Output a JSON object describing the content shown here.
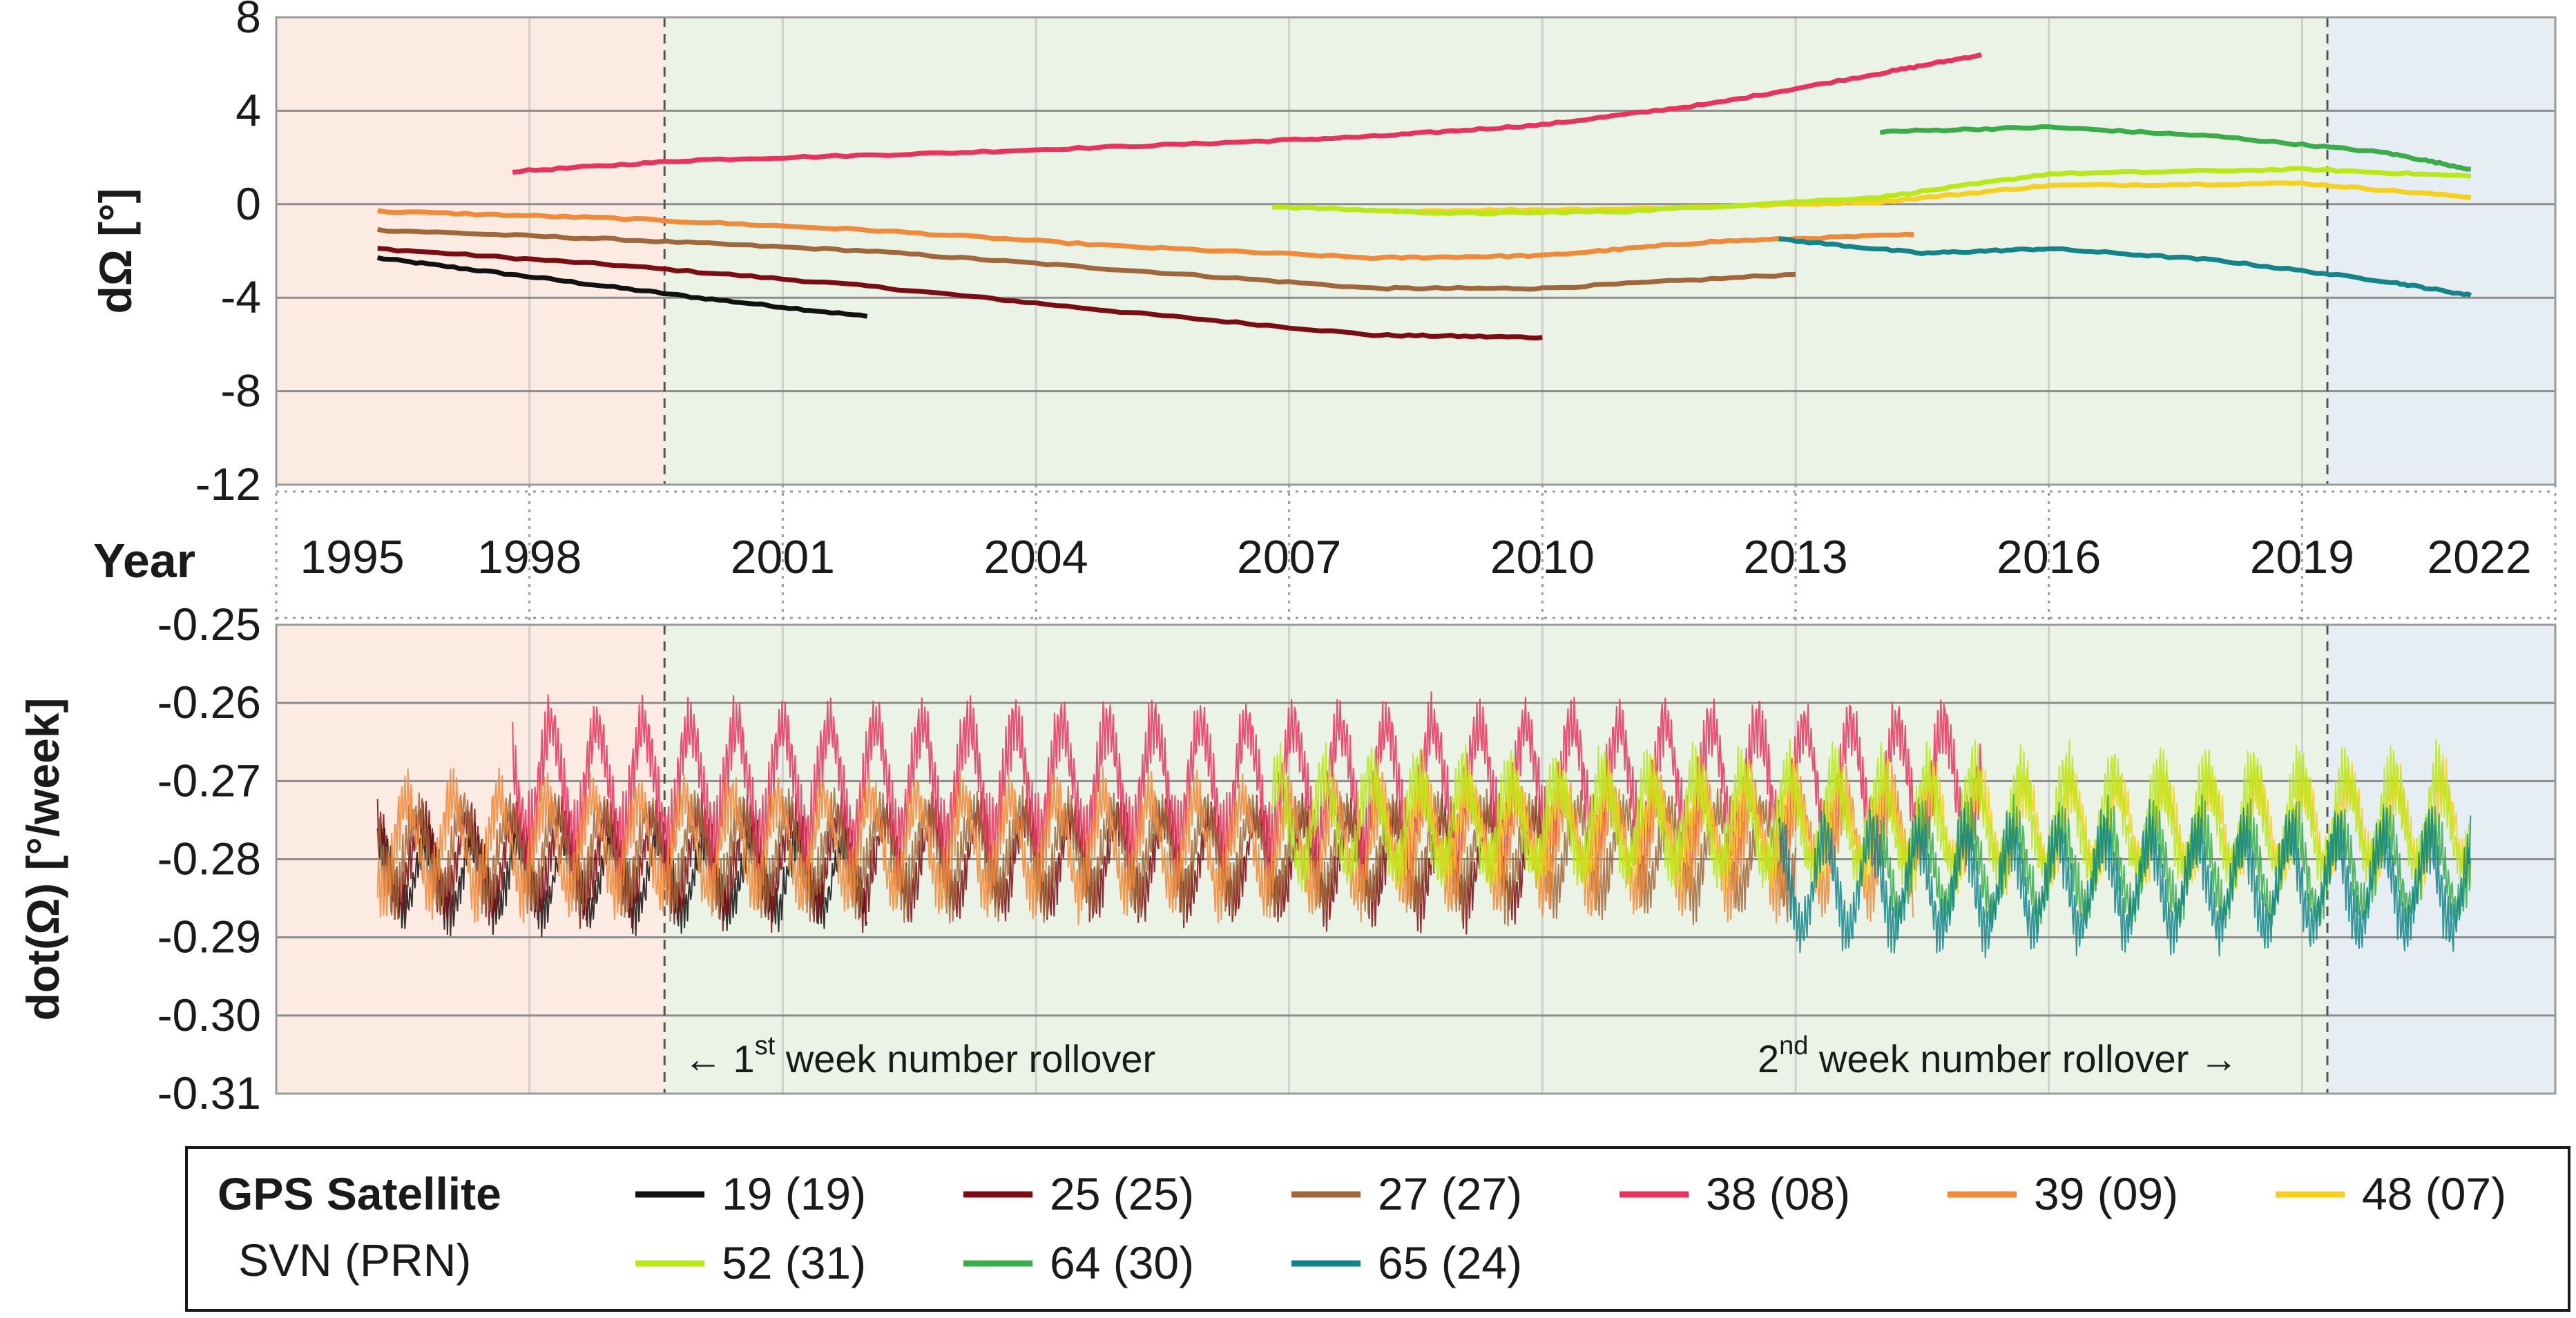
{
  "chart_data": [
    {
      "type": "line",
      "title": "",
      "ylabel": "dΩ [°]",
      "xlabel": "Year",
      "ylim": [
        -12,
        8
      ],
      "yticks": [
        8,
        4,
        0,
        -4,
        -8,
        -12
      ],
      "ytick_labels": [
        "8",
        "4",
        "0",
        "-4",
        "-8",
        "-12"
      ],
      "xlim": [
        1995,
        2022
      ],
      "grid": true,
      "series": [
        {
          "name": "19 (19)",
          "color": "#111111",
          "x": [
            1996.2,
            1998.0,
            2000.0,
            2002.0
          ],
          "y": [
            -2.3,
            -3.1,
            -4.0,
            -4.8
          ]
        },
        {
          "name": "25 (25)",
          "color": "#7a0c12",
          "x": [
            1996.2,
            1999.0,
            2002.0,
            2005.0,
            2008.0,
            2010.0
          ],
          "y": [
            -1.9,
            -2.6,
            -3.5,
            -4.6,
            -5.6,
            -5.7
          ]
        },
        {
          "name": "27 (27)",
          "color": "#a0673a",
          "x": [
            1996.2,
            1999.0,
            2002.0,
            2005.0,
            2008.0,
            2010.0,
            2013.0
          ],
          "y": [
            -1.1,
            -1.5,
            -2.0,
            -2.8,
            -3.6,
            -3.6,
            -3.0
          ]
        },
        {
          "name": "38 (08)",
          "color": "#e8335c",
          "x": [
            1997.8,
            2000.0,
            2003.0,
            2006.0,
            2008.0,
            2010.0,
            2012.0,
            2014.0,
            2015.2
          ],
          "y": [
            1.4,
            1.9,
            2.2,
            2.6,
            2.9,
            3.4,
            4.3,
            5.6,
            6.4
          ]
        },
        {
          "name": "39 (09)",
          "color": "#f08a38",
          "x": [
            1996.2,
            1999.0,
            2002.0,
            2005.0,
            2008.0,
            2010.0,
            2012.0,
            2014.4
          ],
          "y": [
            -0.3,
            -0.6,
            -1.1,
            -1.8,
            -2.3,
            -2.2,
            -1.6,
            -1.3
          ]
        },
        {
          "name": "48 (07)",
          "color": "#f5d020",
          "x": [
            2008.0,
            2011.0,
            2014.0,
            2016.0,
            2019.0,
            2021.0
          ],
          "y": [
            -0.3,
            -0.2,
            0.1,
            0.8,
            0.9,
            0.3
          ]
        },
        {
          "name": "52 (31)",
          "color": "#b8e817",
          "x": [
            2006.8,
            2009.0,
            2011.0,
            2014.0,
            2016.0,
            2019.0,
            2021.0
          ],
          "y": [
            -0.1,
            -0.4,
            -0.3,
            0.3,
            1.3,
            1.5,
            1.2
          ]
        },
        {
          "name": "64 (30)",
          "color": "#3aac4a",
          "x": [
            2014.0,
            2016.0,
            2018.0,
            2020.0,
            2021.0
          ],
          "y": [
            3.1,
            3.3,
            2.9,
            2.2,
            1.5
          ]
        },
        {
          "name": "65 (24)",
          "color": "#13858a",
          "x": [
            2012.8,
            2014.5,
            2016.0,
            2018.0,
            2020.0,
            2021.0
          ],
          "y": [
            -1.5,
            -2.1,
            -1.9,
            -2.4,
            -3.3,
            -3.9
          ]
        }
      ],
      "rollovers": [
        1999.6,
        2019.3
      ]
    },
    {
      "type": "line",
      "title": "",
      "ylabel": "dot(Ω) [°/week]",
      "xlabel": "Year",
      "ylim": [
        -0.31,
        -0.25
      ],
      "yticks": [
        -0.25,
        -0.26,
        -0.27,
        -0.28,
        -0.29,
        -0.3,
        -0.31
      ],
      "ytick_labels": [
        "-0.25",
        "-0.26",
        "-0.27",
        "-0.28",
        "-0.29",
        "-0.30",
        "-0.31"
      ],
      "xlim": [
        1995,
        2022
      ],
      "grid": true,
      "series": [
        {
          "name": "19 (19)",
          "color": "#111111",
          "x_range": [
            1996.2,
            2002.0
          ],
          "mean": -0.282,
          "amp": 0.007
        },
        {
          "name": "25 (25)",
          "color": "#7a0c12",
          "x_range": [
            1996.2,
            2010.0
          ],
          "mean": -0.28,
          "amp": 0.008
        },
        {
          "name": "27 (27)",
          "color": "#a0673a",
          "x_range": [
            1996.2,
            2013.0
          ],
          "mean": -0.279,
          "amp": 0.008
        },
        {
          "name": "38 (08)",
          "color": "#e8335c",
          "x_range": [
            1997.8,
            2015.2
          ],
          "mean": -0.27,
          "amp": 0.011
        },
        {
          "name": "39 (09)",
          "color": "#f08a38",
          "x_range": [
            1996.2,
            2014.4
          ],
          "mean": -0.278,
          "amp": 0.009
        },
        {
          "name": "48 (07)",
          "color": "#f5d020",
          "x_range": [
            2008.0,
            2021.0
          ],
          "mean": -0.276,
          "amp": 0.008
        },
        {
          "name": "52 (31)",
          "color": "#b8e817",
          "x_range": [
            2006.8,
            2021.0
          ],
          "mean": -0.275,
          "amp": 0.009
        },
        {
          "name": "64 (30)",
          "color": "#3aac4a",
          "x_range": [
            2014.0,
            2021.0
          ],
          "mean": -0.281,
          "amp": 0.008
        },
        {
          "name": "65 (24)",
          "color": "#13858a",
          "x_range": [
            2012.8,
            2021.0
          ],
          "mean": -0.283,
          "amp": 0.009
        }
      ],
      "rollovers": [
        1999.6,
        2019.3
      ]
    }
  ],
  "year_axis": {
    "title": "Year",
    "ticks": [
      1995,
      1998,
      2001,
      2004,
      2007,
      2010,
      2013,
      2016,
      2019,
      2022
    ],
    "labels": [
      "1995",
      "1998",
      "2001",
      "2004",
      "2007",
      "2010",
      "2013",
      "2016",
      "2019",
      "2022"
    ]
  },
  "annotations": {
    "rollover1": {
      "pre": "←  1",
      "sup": "st",
      "post": " week number rollover"
    },
    "rollover2": {
      "pre": "2",
      "sup": "nd",
      "post": " week number rollover  →"
    }
  },
  "legend": {
    "title": "GPS Satellite",
    "subtitle": "SVN (PRN)",
    "items": [
      {
        "label": "19 (19)",
        "color": "#111111"
      },
      {
        "label": "25 (25)",
        "color": "#7a0c12"
      },
      {
        "label": "27 (27)",
        "color": "#a0673a"
      },
      {
        "label": "38 (08)",
        "color": "#e8335c"
      },
      {
        "label": "39 (09)",
        "color": "#f08a38"
      },
      {
        "label": "48 (07)",
        "color": "#f5d020"
      },
      {
        "label": "52 (31)",
        "color": "#b8e817"
      },
      {
        "label": "64 (30)",
        "color": "#3aac4a"
      },
      {
        "label": "65 (24)",
        "color": "#13858a"
      }
    ]
  },
  "colors": {
    "bg_early": "#fcebe3",
    "bg_mid": "#ebf3e7",
    "bg_late": "#e6eef3"
  }
}
